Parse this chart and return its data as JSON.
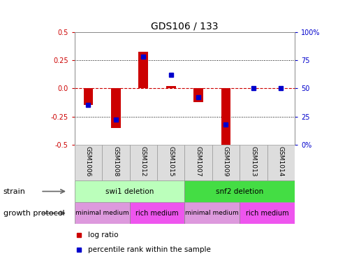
{
  "title": "GDS106 / 133",
  "samples": [
    "GSM1006",
    "GSM1008",
    "GSM1012",
    "GSM1015",
    "GSM1007",
    "GSM1009",
    "GSM1013",
    "GSM1014"
  ],
  "log_ratios": [
    -0.15,
    -0.355,
    0.325,
    0.02,
    -0.12,
    -0.5,
    0.0,
    0.0
  ],
  "percentile_ranks": [
    35,
    22,
    78,
    62,
    42,
    18,
    50,
    50
  ],
  "ylim": [
    -0.5,
    0.5
  ],
  "yticks_left": [
    -0.5,
    -0.25,
    0.0,
    0.25,
    0.5
  ],
  "yticks_right": [
    0,
    25,
    50,
    75,
    100
  ],
  "yticks_right_labels": [
    "0%",
    "25",
    "50",
    "75",
    "100%"
  ],
  "bar_color": "#cc0000",
  "blue_color": "#0000cc",
  "strain_swi1": "swi1 deletion",
  "strain_snf2": "snf2 deletion",
  "strain_swi1_color": "#bbffbb",
  "strain_snf2_color": "#44dd44",
  "growth_min_color": "#dd99dd",
  "growth_rich_color": "#ee55ee",
  "growth_min_label": "minimal medium",
  "growth_rich_label": "rich medium",
  "strain_label": "strain",
  "growth_label": "growth protocol",
  "legend_log": "log ratio",
  "legend_pct": "percentile rank within the sample",
  "bar_width": 0.35,
  "blue_marker_size": 5,
  "xlabels_bg": "#dddddd"
}
